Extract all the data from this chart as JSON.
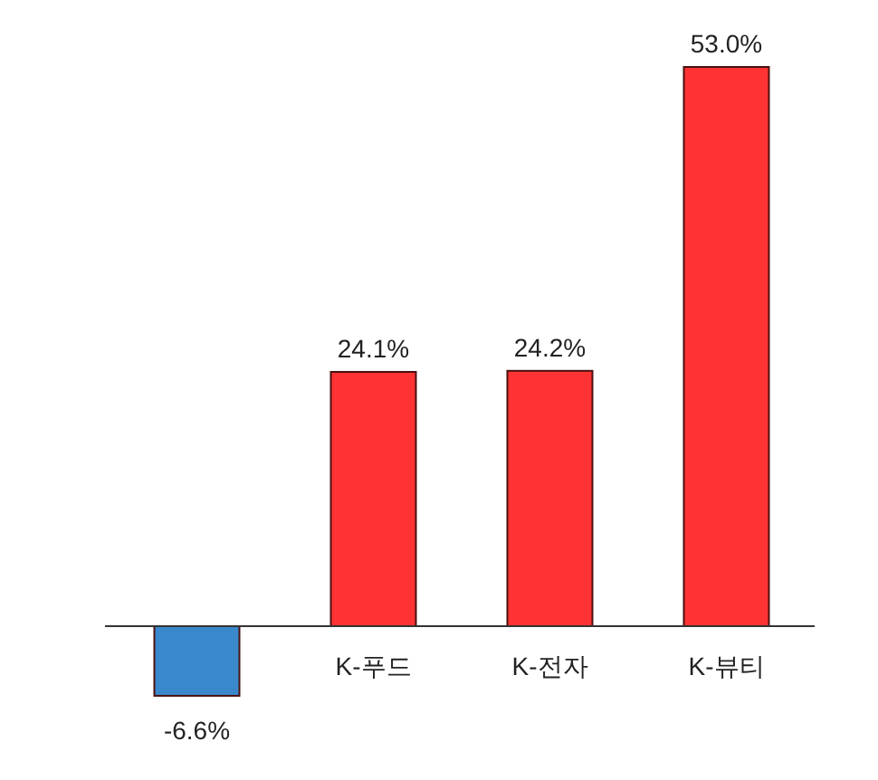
{
  "chart_data": {
    "type": "bar",
    "categories": [
      null,
      "K-푸드",
      "K-전자",
      "K-뷰티"
    ],
    "values": [
      -6.6,
      24.1,
      24.2,
      53.0
    ],
    "colors": [
      "#3a88cc",
      "#ff3333",
      "#ff3333",
      "#ff3333"
    ],
    "value_labels": [
      "-6.6%",
      "24.1%",
      "24.2%",
      "53.0%"
    ]
  }
}
